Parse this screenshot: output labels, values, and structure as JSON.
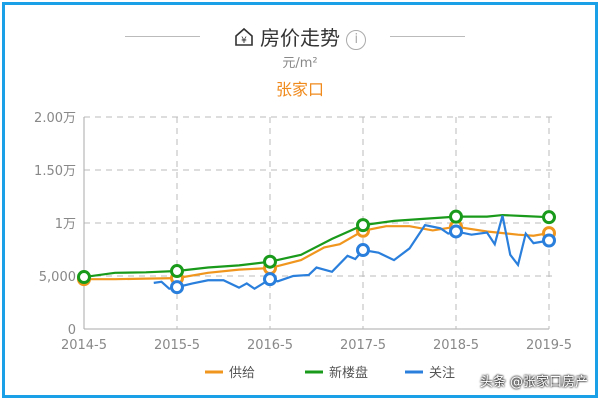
{
  "header": {
    "title": "房价走势",
    "house_icon": "house-yen-icon",
    "info_icon": "info-icon",
    "unit": "元/m²",
    "city": "张家口"
  },
  "watermark": "头条 @张家口房产",
  "chart_data": {
    "type": "line",
    "title": "房价走势",
    "ylabel": "元/m²",
    "ylim": [
      0,
      20000
    ],
    "y_ticks": [
      0,
      5000,
      10000,
      15000,
      20000
    ],
    "y_tick_labels": [
      "0",
      "5,000",
      "1万",
      "1.50万",
      "2.00万"
    ],
    "x_ticks": [
      "2014-5",
      "2015-5",
      "2016-5",
      "2017-5",
      "2018-5",
      "2019-5"
    ],
    "xlim": [
      "2014-05",
      "2019-05"
    ],
    "grid": true,
    "legend": "bottom",
    "series": [
      {
        "name": "供给",
        "color": "#f0961e",
        "points": [
          [
            "2014-05",
            4700
          ],
          [
            "2014-09",
            4700
          ],
          [
            "2015-01",
            4750
          ],
          [
            "2015-05",
            4800
          ],
          [
            "2015-09",
            5300
          ],
          [
            "2016-01",
            5600
          ],
          [
            "2016-05",
            5750
          ],
          [
            "2016-09",
            6500
          ],
          [
            "2016-12",
            7700
          ],
          [
            "2017-02",
            8000
          ],
          [
            "2017-05",
            9270
          ],
          [
            "2017-08",
            9700
          ],
          [
            "2017-11",
            9700
          ],
          [
            "2018-02",
            9300
          ],
          [
            "2018-05",
            9650
          ],
          [
            "2018-09",
            9200
          ],
          [
            "2019-01",
            8900
          ],
          [
            "2019-03",
            8800
          ],
          [
            "2019-05",
            9050
          ]
        ]
      },
      {
        "name": "新楼盘",
        "color": "#1a9a1a",
        "points": [
          [
            "2014-05",
            4900
          ],
          [
            "2014-09",
            5300
          ],
          [
            "2015-01",
            5350
          ],
          [
            "2015-05",
            5470
          ],
          [
            "2015-09",
            5800
          ],
          [
            "2016-01",
            6000
          ],
          [
            "2016-05",
            6350
          ],
          [
            "2016-09",
            7000
          ],
          [
            "2017-01",
            8500
          ],
          [
            "2017-05",
            9800
          ],
          [
            "2017-09",
            10200
          ],
          [
            "2018-01",
            10400
          ],
          [
            "2018-05",
            10600
          ],
          [
            "2018-09",
            10600
          ],
          [
            "2018-11",
            10750
          ],
          [
            "2019-02",
            10650
          ],
          [
            "2019-05",
            10550
          ]
        ]
      },
      {
        "name": "关注",
        "color": "#2a7fdc",
        "points": [
          [
            "2015-02",
            4350
          ],
          [
            "2015-03",
            4450
          ],
          [
            "2015-04",
            3800
          ],
          [
            "2015-05",
            3950
          ],
          [
            "2015-07",
            4300
          ],
          [
            "2015-09",
            4600
          ],
          [
            "2015-11",
            4600
          ],
          [
            "2016-01",
            3900
          ],
          [
            "2016-02",
            4300
          ],
          [
            "2016-03",
            3800
          ],
          [
            "2016-05",
            4700
          ],
          [
            "2016-06",
            4500
          ],
          [
            "2016-08",
            5000
          ],
          [
            "2016-10",
            5100
          ],
          [
            "2016-11",
            5800
          ],
          [
            "2017-01",
            5400
          ],
          [
            "2017-03",
            6900
          ],
          [
            "2017-04",
            6600
          ],
          [
            "2017-05",
            7450
          ],
          [
            "2017-07",
            7200
          ],
          [
            "2017-09",
            6500
          ],
          [
            "2017-11",
            7600
          ],
          [
            "2018-01",
            9800
          ],
          [
            "2018-03",
            9500
          ],
          [
            "2018-04",
            9000
          ],
          [
            "2018-05",
            9200
          ],
          [
            "2018-07",
            8900
          ],
          [
            "2018-09",
            9100
          ],
          [
            "2018-10",
            8000
          ],
          [
            "2018-11",
            10700
          ],
          [
            "2018-12",
            7000
          ],
          [
            "2019-01",
            6050
          ],
          [
            "2019-02",
            9000
          ],
          [
            "2019-03",
            8100
          ],
          [
            "2019-05",
            8350
          ]
        ]
      }
    ]
  }
}
